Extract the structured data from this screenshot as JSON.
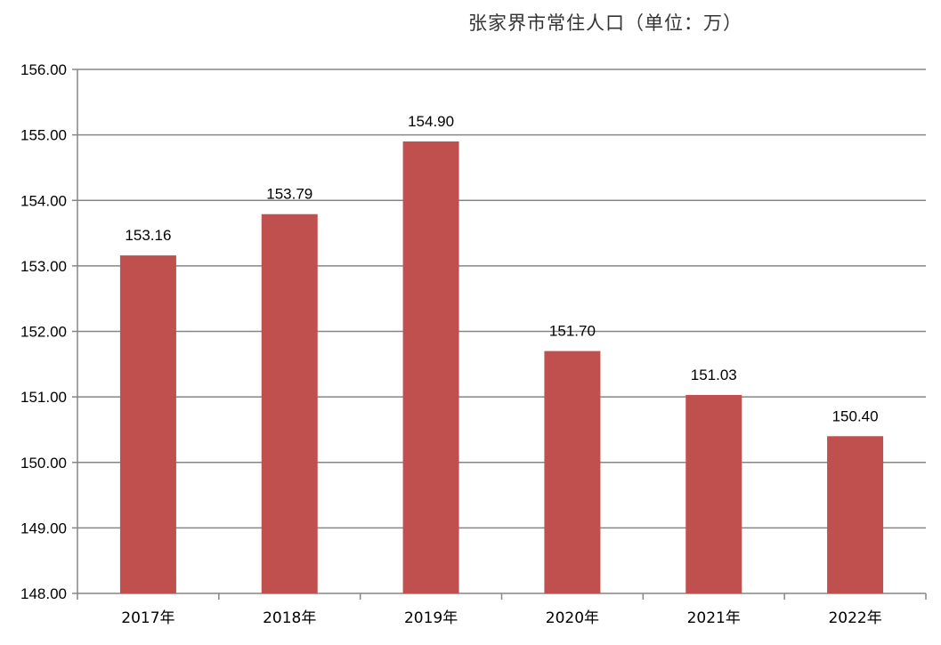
{
  "chart_data": {
    "type": "bar",
    "title": "张家界市常住人口（单位：万）",
    "categories": [
      "2017年",
      "2018年",
      "2019年",
      "2020年",
      "2021年",
      "2022年"
    ],
    "values": [
      153.16,
      153.79,
      154.9,
      151.7,
      151.03,
      150.4
    ],
    "data_labels": [
      "153.16",
      "153.79",
      "154.90",
      "151.70",
      "151.03",
      "150.40"
    ],
    "ylim": [
      148,
      156
    ],
    "yticks": [
      "148.00",
      "149.00",
      "150.00",
      "151.00",
      "152.00",
      "153.00",
      "154.00",
      "155.00",
      "156.00"
    ],
    "xlabel": "",
    "ylabel": "",
    "grid": "horizontal",
    "legend": "none",
    "bar_color": "#c0504d",
    "grid_color": "#868686"
  }
}
